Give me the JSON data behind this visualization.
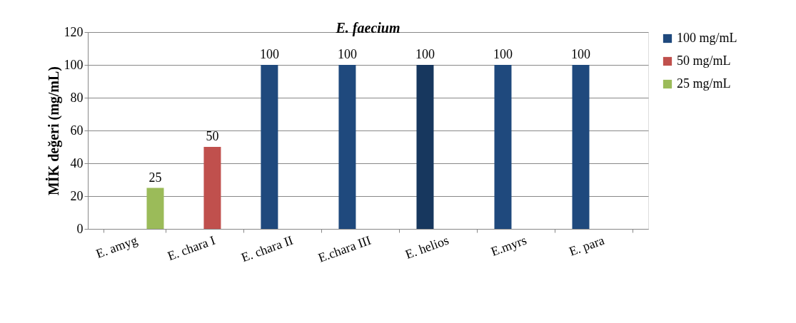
{
  "chart_data": {
    "type": "bar",
    "title": "E.  faecium",
    "ylabel": "MİK değeri (mg/mL)",
    "categories": [
      "E. amyg",
      "E. chara I",
      "E. chara II",
      "E.chara III",
      "E. helios",
      "E.myrs",
      "E. para"
    ],
    "series": [
      {
        "name": "100 mg/mL",
        "color": "#1f497d",
        "colors": [
          "#1f497d",
          "#1f497d",
          "#1f497d",
          "#1f497d",
          "#17375e",
          "#1f497d",
          "#1f497d"
        ],
        "values": [
          null,
          null,
          100,
          100,
          100,
          100,
          100
        ]
      },
      {
        "name": "50 mg/mL",
        "color": "#c0504d",
        "values": [
          null,
          50,
          null,
          null,
          null,
          null,
          null
        ]
      },
      {
        "name": "25 mg/mL",
        "color": "#9bbb59",
        "values": [
          25,
          null,
          null,
          null,
          null,
          null,
          null
        ]
      }
    ],
    "ylim": [
      0,
      120
    ],
    "yticks": [
      0,
      20,
      40,
      60,
      80,
      100,
      120
    ],
    "grid": "y",
    "legend": "right",
    "data_labels": true
  }
}
